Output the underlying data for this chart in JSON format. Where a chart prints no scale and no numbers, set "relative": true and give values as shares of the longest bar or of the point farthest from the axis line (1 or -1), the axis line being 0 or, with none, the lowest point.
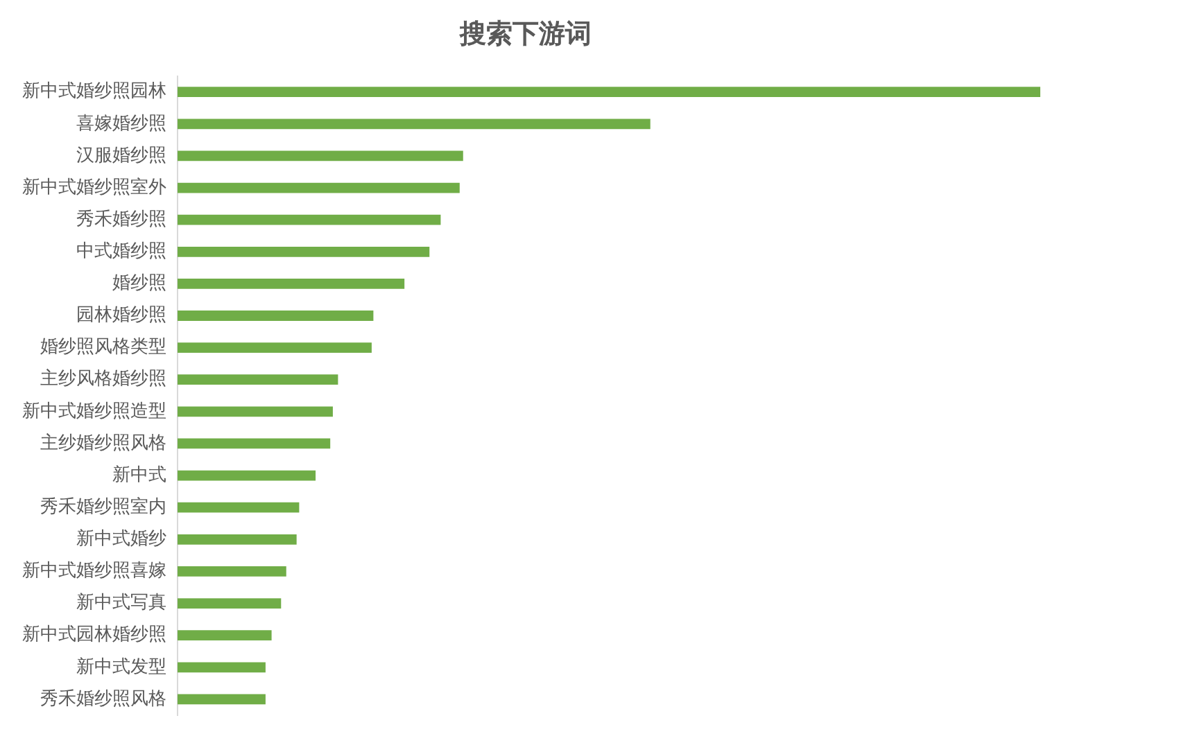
{
  "chart_data": {
    "type": "bar",
    "orientation": "horizontal",
    "relative": true,
    "title": "搜索下游词",
    "categories": [
      "新中式婚纱照园林",
      "喜嫁婚纱照",
      "汉服婚纱照",
      "新中式婚纱照室外",
      "秀禾婚纱照",
      "中式婚纱照",
      "婚纱照",
      "园林婚纱照",
      "婚纱照风格类型",
      "主纱风格婚纱照",
      "新中式婚纱照造型",
      "主纱婚纱照风格",
      "新中式",
      "秀禾婚纱照室内",
      "新中式婚纱",
      "新中式婚纱照喜嫁",
      "新中式写真",
      "新中式园林婚纱照",
      "新中式发型",
      "秀禾婚纱照风格"
    ],
    "values": [
      1,
      0.548,
      0.331,
      0.327,
      0.305,
      0.292,
      0.263,
      0.227,
      0.225,
      0.186,
      0.18,
      0.177,
      0.16,
      0.141,
      0.138,
      0.126,
      0.12,
      0.109,
      0.102,
      0.102
    ],
    "color": "#70ad47"
  }
}
